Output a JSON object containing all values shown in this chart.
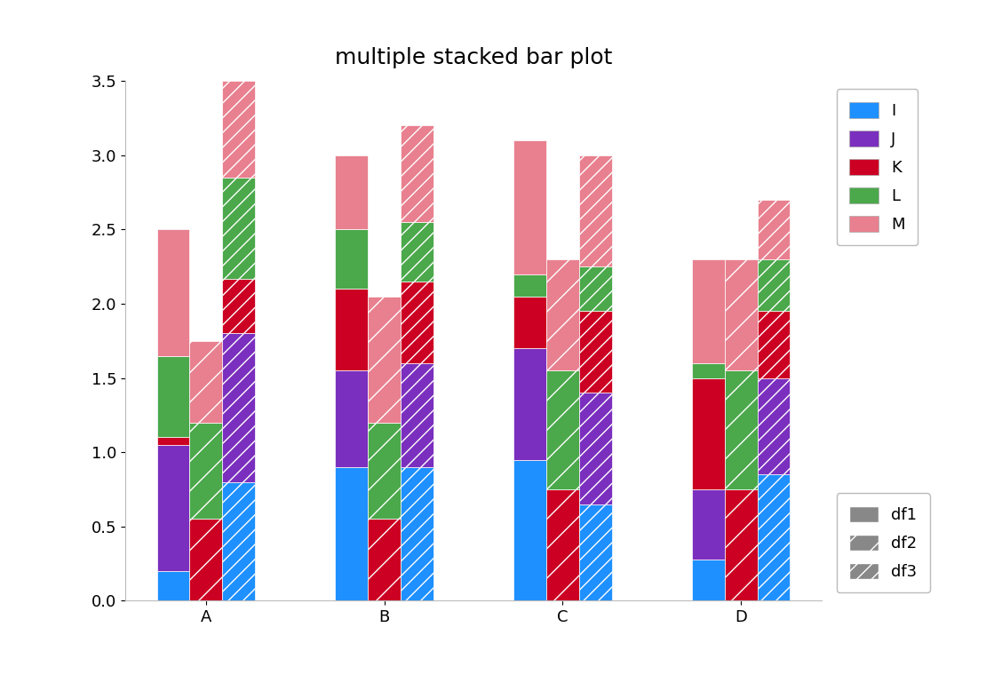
{
  "title": "multiple stacked bar plot",
  "categories": [
    "A",
    "B",
    "C",
    "D"
  ],
  "columns": [
    "I",
    "J",
    "K",
    "L",
    "M"
  ],
  "df1": {
    "A": [
      0.2,
      0.85,
      0.05,
      0.55,
      0.85
    ],
    "B": [
      0.9,
      0.65,
      0.55,
      0.4,
      0.5
    ],
    "C": [
      0.95,
      0.75,
      0.35,
      0.15,
      0.9
    ],
    "D": [
      0.28,
      0.47,
      0.75,
      0.1,
      0.7
    ]
  },
  "df2": {
    "A": [
      0.0,
      0.0,
      0.55,
      0.65,
      0.55
    ],
    "B": [
      0.0,
      0.0,
      0.55,
      0.65,
      0.85
    ],
    "C": [
      0.0,
      0.0,
      0.75,
      0.8,
      0.75
    ],
    "D": [
      0.0,
      0.0,
      0.75,
      0.8,
      0.75
    ]
  },
  "df3": {
    "A": [
      0.8,
      1.0,
      0.37,
      0.68,
      0.65
    ],
    "B": [
      0.9,
      0.7,
      0.55,
      0.4,
      0.65
    ],
    "C": [
      0.65,
      0.75,
      0.55,
      0.3,
      0.75
    ],
    "D": [
      0.85,
      0.65,
      0.45,
      0.35,
      0.4
    ]
  },
  "colors": {
    "I": "#1E90FF",
    "J": "#7B2FBE",
    "K": "#CC0022",
    "L": "#4BA84B",
    "M": "#E8808F"
  },
  "bar_width": 0.22,
  "ylim": [
    0,
    3.5
  ],
  "yticks": [
    0.0,
    0.5,
    1.0,
    1.5,
    2.0,
    2.5,
    3.0,
    3.5
  ],
  "background_color": "#ffffff",
  "title_fontsize": 18,
  "tick_fontsize": 13
}
